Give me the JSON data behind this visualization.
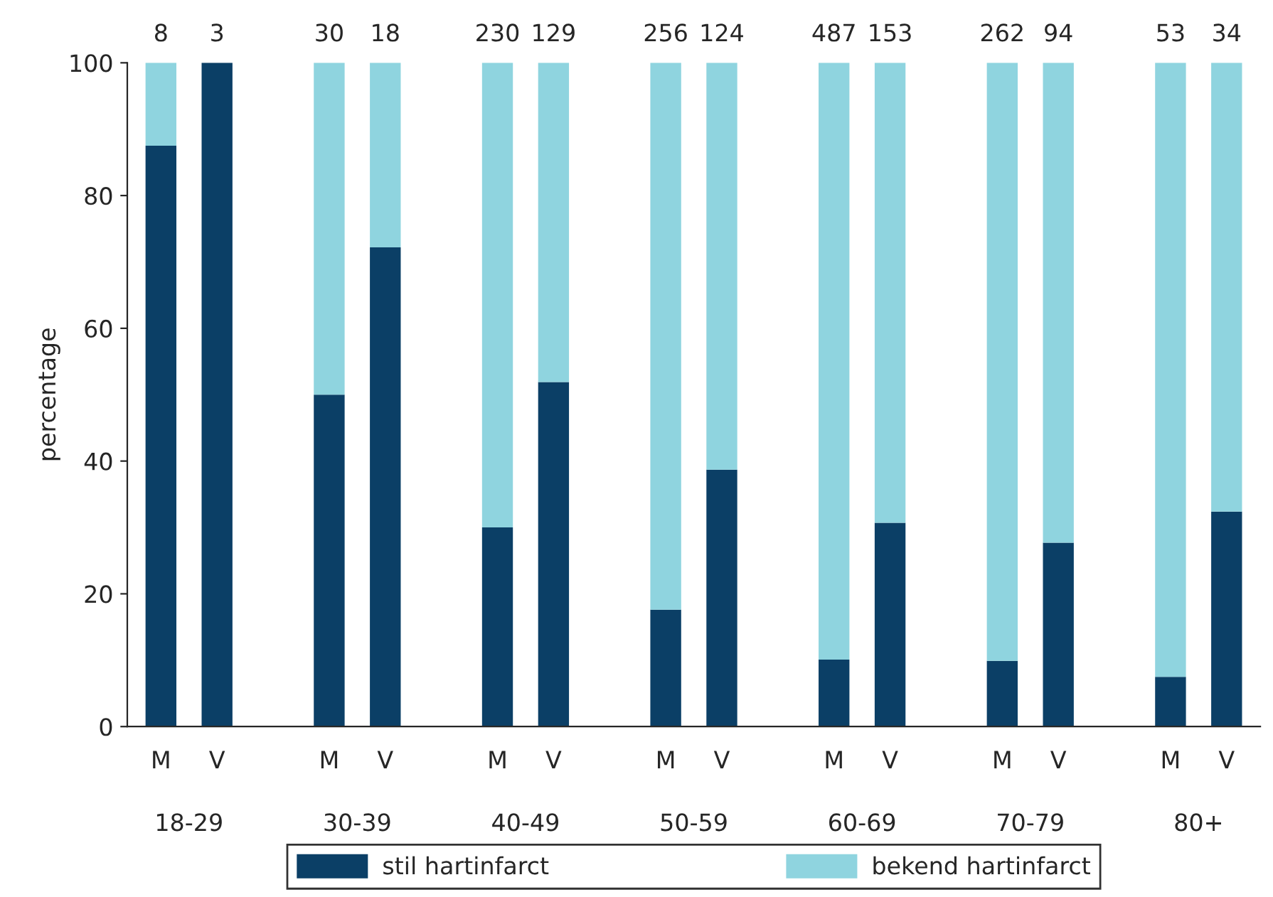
{
  "chart_data": {
    "type": "bar",
    "stacked": true,
    "ylabel": "percentage",
    "categories": [
      "M",
      "V",
      null,
      "M",
      "V",
      null,
      "M",
      "V",
      null,
      "M",
      "V",
      null,
      "M",
      "V",
      null,
      "M",
      "V",
      null,
      "M",
      "V"
    ],
    "series": [
      {
        "name": "stil hartinfarct",
        "color": "#0b3f66",
        "values": [
          87.5,
          100,
          null,
          50,
          72.2,
          null,
          30.0,
          51.9,
          null,
          17.6,
          38.7,
          null,
          10.1,
          30.7,
          null,
          9.9,
          27.7,
          null,
          7.5,
          32.4
        ]
      },
      {
        "name": "bekend hartinfarct",
        "color": "#8fd4df",
        "values": [
          12.5,
          null,
          null,
          50,
          27.8,
          null,
          70.0,
          48.1,
          null,
          82.4,
          61.3,
          null,
          89.9,
          69.3,
          null,
          90.1,
          72.3,
          null,
          92.5,
          67.6
        ]
      }
    ],
    "annotations": [
      "8",
      "3",
      "30",
      "18",
      "230",
      "129",
      "256",
      "124",
      "487",
      "153",
      "262",
      "94",
      "53",
      "34",
      "18-29",
      "30-39",
      "40-49",
      "50-59",
      "60-69",
      "70-79",
      "80+"
    ],
    "ylim": [
      0,
      100
    ],
    "yticks": [
      0,
      20,
      40,
      60,
      80,
      100
    ],
    "grid": false,
    "legend": "bottom"
  }
}
